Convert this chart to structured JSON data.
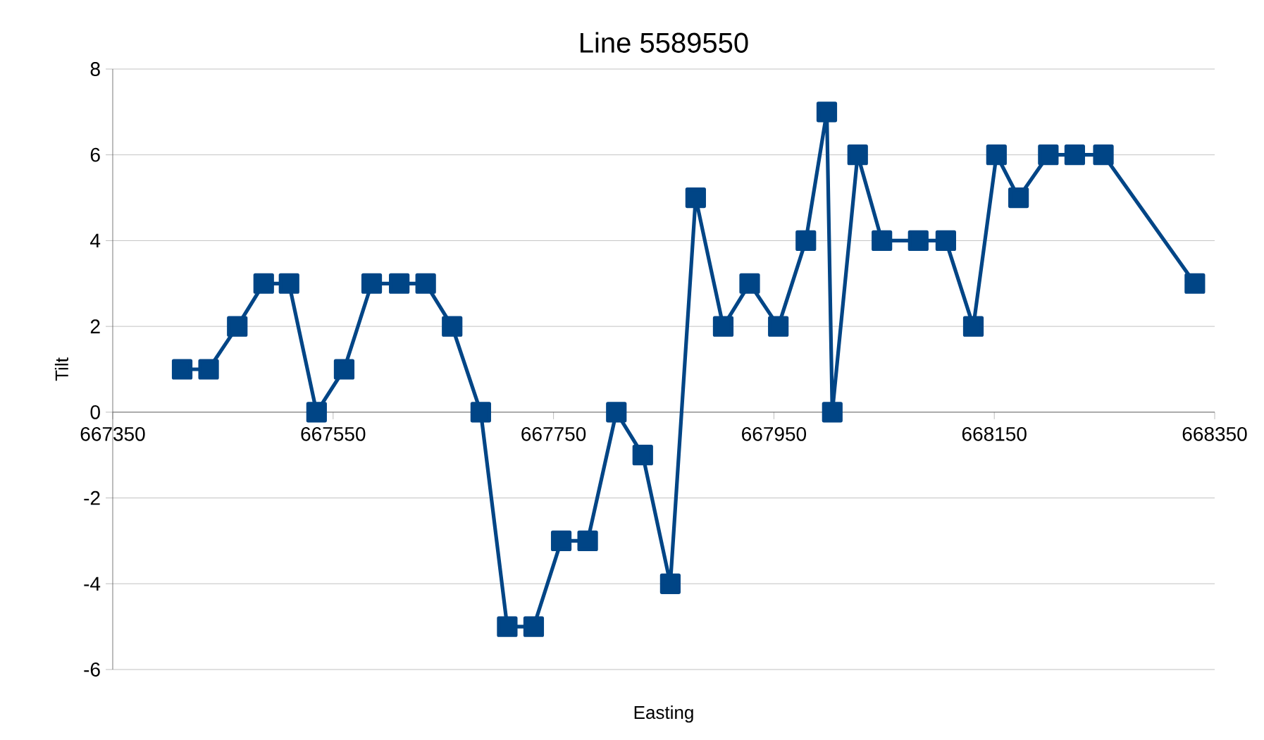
{
  "chart_data": {
    "type": "line",
    "title": "Line 5589550",
    "xlabel": "Easting",
    "ylabel": "Tilt",
    "x": [
      667413,
      667437,
      667463,
      667487,
      667510,
      667535,
      667560,
      667585,
      667610,
      667634,
      667658,
      667684,
      667708,
      667732,
      667757,
      667781,
      667807,
      667831,
      667856,
      667879,
      667904,
      667928,
      667954,
      667979,
      667998,
      668003,
      668026,
      668048,
      668081,
      668106,
      668131,
      668152,
      668172,
      668199,
      668223,
      668249,
      668332
    ],
    "series": [
      {
        "color": "#004586",
        "values": [
          1,
          1,
          2,
          3,
          3,
          0,
          1,
          3,
          3,
          3,
          2,
          0,
          -5,
          -5,
          -3,
          -3,
          0,
          -1,
          -4,
          5,
          2,
          3,
          2,
          4,
          7,
          0,
          6,
          4,
          4,
          4,
          2,
          6,
          5,
          6,
          6,
          6,
          3
        ]
      }
    ],
    "xlim": [
      667350,
      668350
    ],
    "xticks": [
      667350,
      667550,
      667750,
      667950,
      668150,
      668350
    ],
    "ylim": [
      -6,
      8
    ],
    "yticks": [
      -6,
      -4,
      -2,
      0,
      2,
      4,
      6,
      8
    ],
    "grid": "y",
    "marker": "square",
    "line_style": "solid"
  }
}
